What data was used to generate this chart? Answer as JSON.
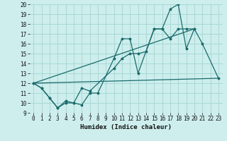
{
  "xlabel": "Humidex (Indice chaleur)",
  "seg1_x": [
    0,
    1,
    2,
    3,
    4,
    5,
    6,
    7,
    8,
    10,
    11,
    12,
    13,
    15,
    16,
    17,
    18,
    19,
    20,
    21,
    23
  ],
  "seg1_y": [
    12,
    11.5,
    10.5,
    9.5,
    10.0,
    10.0,
    9.8,
    11.0,
    11.0,
    14.5,
    16.5,
    16.5,
    13.0,
    17.5,
    17.5,
    19.5,
    20.0,
    15.5,
    17.5,
    16.0,
    12.5
  ],
  "seg2_x": [
    0,
    1,
    2,
    3,
    4,
    5,
    6,
    7,
    10,
    11,
    12,
    13,
    14,
    15,
    16,
    17,
    18,
    19,
    20
  ],
  "seg2_y": [
    12,
    11.5,
    10.5,
    9.5,
    10.2,
    10.0,
    11.5,
    11.2,
    13.5,
    14.5,
    15.0,
    15.0,
    15.2,
    17.5,
    17.5,
    16.5,
    17.5,
    17.5,
    17.5
  ],
  "trend1_x": [
    0,
    23
  ],
  "trend1_y": [
    12,
    12.5
  ],
  "trend2_x": [
    0,
    20
  ],
  "trend2_y": [
    12,
    17.5
  ],
  "bg_color": "#cdeeed",
  "grid_color": "#a8d8d5",
  "line_color": "#1a6b6b",
  "ylim": [
    9,
    20
  ],
  "xlim": [
    -0.5,
    23.5
  ],
  "yticks": [
    9,
    10,
    11,
    12,
    13,
    14,
    15,
    16,
    17,
    18,
    19,
    20
  ],
  "xticks": [
    0,
    1,
    2,
    3,
    4,
    5,
    6,
    7,
    8,
    9,
    10,
    11,
    12,
    13,
    14,
    15,
    16,
    17,
    18,
    19,
    20,
    21,
    22,
    23
  ],
  "tick_fontsize": 5.5,
  "xlabel_fontsize": 6.5
}
